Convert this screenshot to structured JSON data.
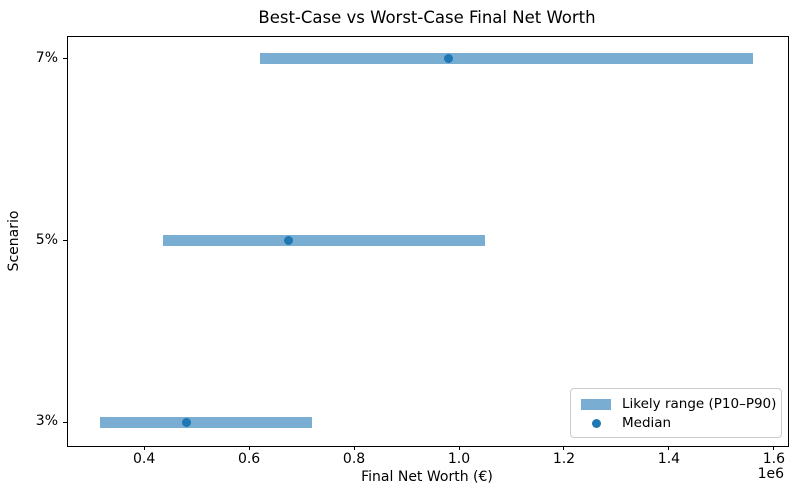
{
  "chart_data": {
    "type": "bar",
    "orientation": "horizontal",
    "title": "Best-Case vs Worst-Case Final Net Worth",
    "xlabel": "Final Net Worth (€)",
    "ylabel": "Scenario",
    "x_offset_label": "1e6",
    "categories": [
      "3%",
      "5%",
      "7%"
    ],
    "categories_order": "bottom-to-top",
    "series": [
      {
        "name": "P10",
        "values": [
          315000,
          435000,
          620000
        ]
      },
      {
        "name": "Median",
        "values": [
          480000,
          675000,
          980000
        ]
      },
      {
        "name": "P90",
        "values": [
          720000,
          1050000,
          1560000
        ]
      }
    ],
    "xlim": [
      253000,
      1625000
    ],
    "xticks": [
      400000,
      600000,
      800000,
      1000000,
      1200000,
      1400000,
      1600000
    ],
    "xtick_labels": [
      "0.4",
      "0.6",
      "0.8",
      "1.0",
      "1.2",
      "1.4",
      "1.6"
    ],
    "x_multiplier": 1000000,
    "grid": false,
    "colors": {
      "bar": "#79ADD2",
      "median_dot": "#1F77B4",
      "spine": "#000000",
      "legend_border": "#CCCCCC"
    },
    "legend": {
      "position": "lower right",
      "entries": [
        {
          "label": "Likely range (P10–P90)",
          "marker": "patch",
          "color": "#79ADD2"
        },
        {
          "label": "Median",
          "marker": "dot",
          "color": "#1F77B4"
        }
      ]
    }
  }
}
